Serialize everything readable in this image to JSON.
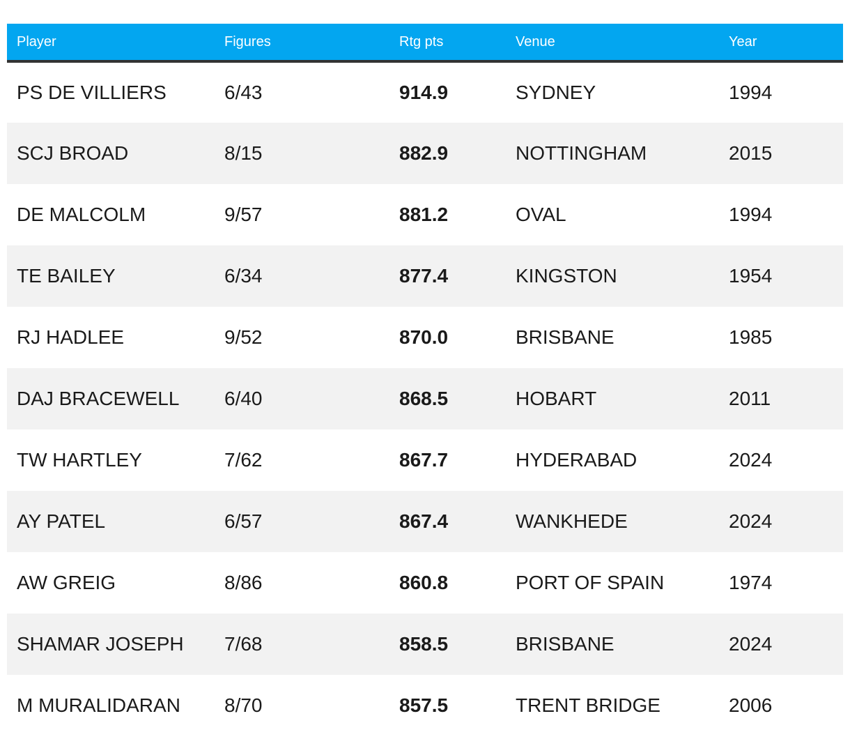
{
  "table": {
    "columns": [
      "Player",
      "Figures",
      "Rtg pts",
      "Venue",
      "Year"
    ],
    "rows": [
      {
        "player": "PS DE VILLIERS",
        "figures": "6/43",
        "rtg_pts": "914.9",
        "venue": "SYDNEY",
        "year": "1994"
      },
      {
        "player": "SCJ BROAD",
        "figures": "8/15",
        "rtg_pts": "882.9",
        "venue": "NOTTINGHAM",
        "year": "2015"
      },
      {
        "player": "DE MALCOLM",
        "figures": "9/57",
        "rtg_pts": "881.2",
        "venue": "OVAL",
        "year": "1994"
      },
      {
        "player": "TE BAILEY",
        "figures": "6/34",
        "rtg_pts": "877.4",
        "venue": "KINGSTON",
        "year": "1954"
      },
      {
        "player": "RJ HADLEE",
        "figures": "9/52",
        "rtg_pts": "870.0",
        "venue": "BRISBANE",
        "year": "1985"
      },
      {
        "player": "DAJ BRACEWELL",
        "figures": "6/40",
        "rtg_pts": "868.5",
        "venue": "HOBART",
        "year": "2011"
      },
      {
        "player": "TW HARTLEY",
        "figures": "7/62",
        "rtg_pts": "867.7",
        "venue": "HYDERABAD",
        "year": "2024"
      },
      {
        "player": "AY PATEL",
        "figures": "6/57",
        "rtg_pts": "867.4",
        "venue": "WANKHEDE",
        "year": "2024"
      },
      {
        "player": "AW GREIG",
        "figures": "8/86",
        "rtg_pts": "860.8",
        "venue": "PORT OF SPAIN",
        "year": "1974"
      },
      {
        "player": "SHAMAR JOSEPH",
        "figures": "7/68",
        "rtg_pts": "858.5",
        "venue": "BRISBANE",
        "year": "2024"
      },
      {
        "player": "M MURALIDARAN",
        "figures": "8/70",
        "rtg_pts": "857.5",
        "venue": "TRENT BRIDGE",
        "year": "2006"
      }
    ]
  },
  "colors": {
    "header_bg": "#03a6f0",
    "header_text": "#ffffff",
    "header_border": "#333333",
    "row_alt_bg": "#f2f2f2",
    "body_text": "#1a1a1a"
  }
}
